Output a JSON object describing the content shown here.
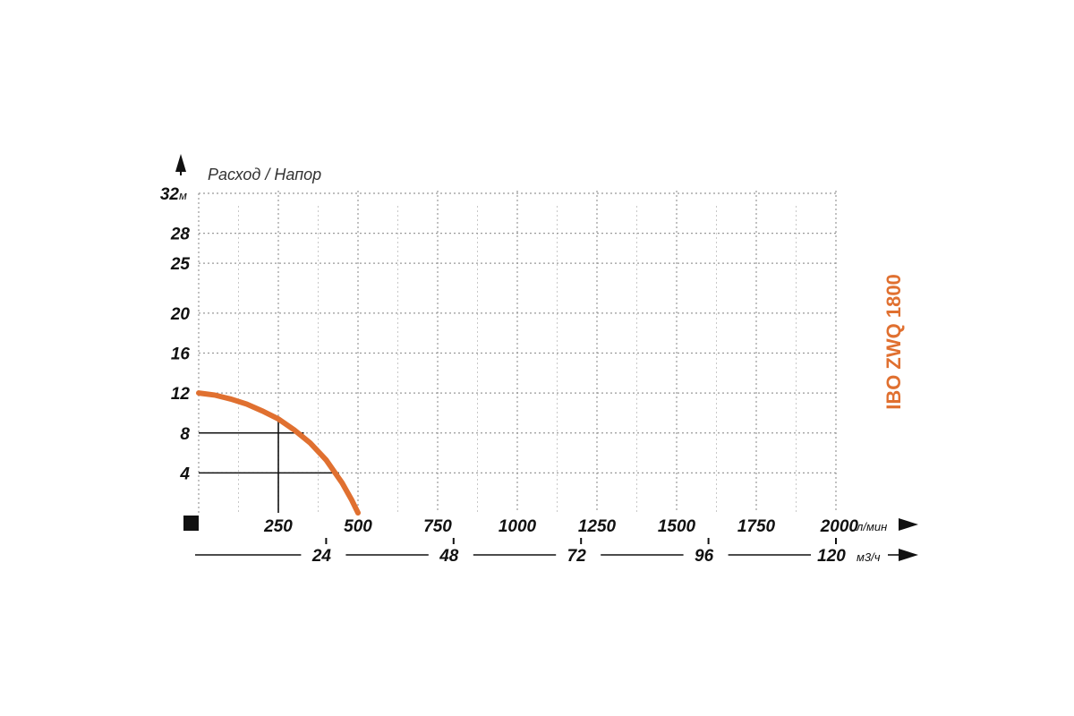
{
  "chart_data": {
    "type": "line",
    "title": "IBO ZWQ 1800",
    "ylabel": "Расход / Напор",
    "y_unit": "м",
    "x_unit": "л/мин",
    "x2_unit": "м3/ч",
    "y_ticks": [
      4,
      8,
      12,
      16,
      20,
      25,
      28,
      32
    ],
    "x_ticks": [
      250,
      500,
      750,
      1000,
      1250,
      1500,
      1750,
      2000
    ],
    "x2_ticks": [
      24,
      48,
      72,
      96,
      120
    ],
    "x2_tick_positions_lpm": [
      400,
      800,
      1200,
      1600,
      2000
    ],
    "xlim": [
      0,
      2000
    ],
    "ylim": [
      0,
      32
    ],
    "grid": true,
    "series": [
      {
        "x": [
          0,
          50,
          100,
          150,
          200,
          250,
          300,
          350,
          400,
          450,
          480,
          500
        ],
        "y": [
          12,
          11.8,
          11.4,
          10.9,
          10.2,
          9.4,
          8.3,
          7,
          5.3,
          3,
          1.3,
          0
        ]
      }
    ],
    "annotations": [
      {
        "x": 250,
        "y": 9.4
      },
      {
        "x": 330,
        "y": 8
      },
      {
        "x": 440,
        "y": 4
      }
    ],
    "colors": {
      "curve": "#e07030",
      "grid": "#999999",
      "text": "#111111"
    }
  }
}
